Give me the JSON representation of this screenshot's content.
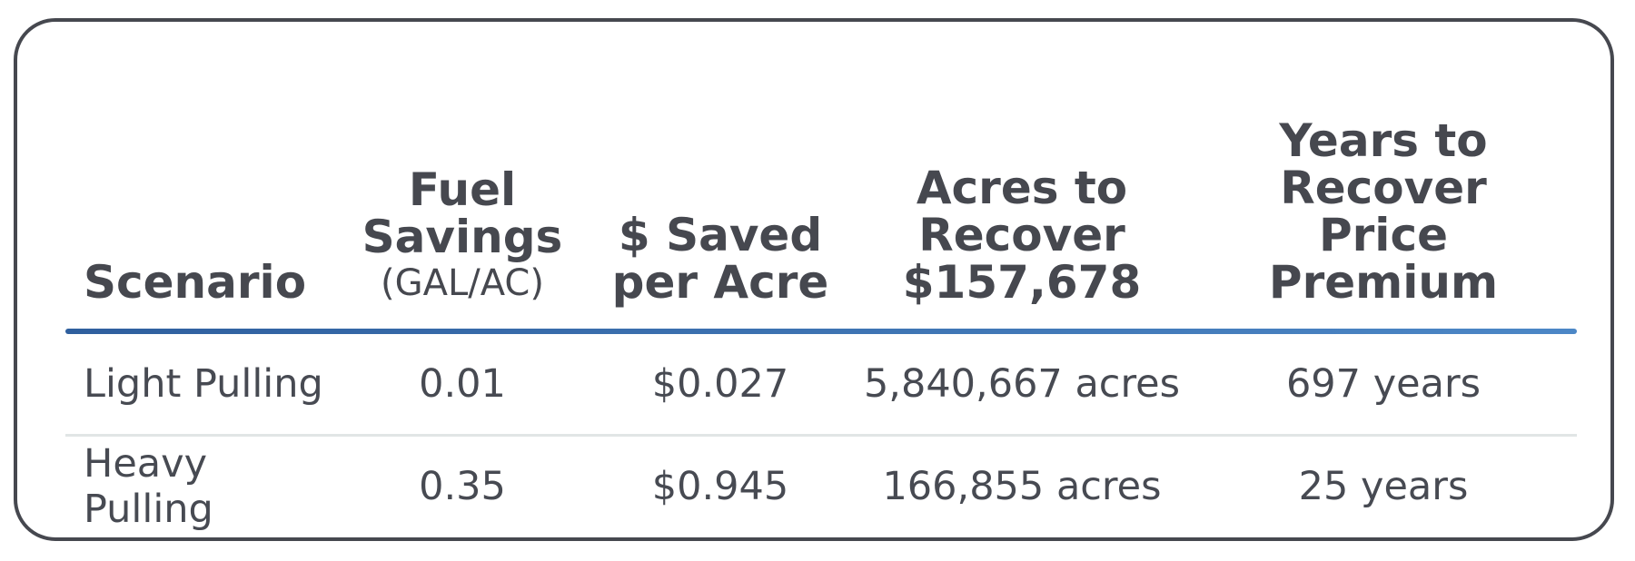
{
  "table": {
    "headers": [
      {
        "main": "Scenario",
        "sub": ""
      },
      {
        "main": "Fuel Savings",
        "sub": "(GAL/AC)"
      },
      {
        "main": "$ Saved per Acre",
        "sub": ""
      },
      {
        "main": "Acres to Recover $157,678",
        "sub": ""
      },
      {
        "main": "Years to Recover Price Premium",
        "sub": ""
      }
    ],
    "rows": [
      [
        "Light Pulling",
        "0.01",
        "$0.027",
        "5,840,667 acres",
        "697 years"
      ],
      [
        "Heavy Pulling",
        "0.35",
        "$0.945",
        "166,855 acres",
        "25 years"
      ]
    ]
  },
  "colors": {
    "text": "#474a52",
    "border": "#46484f",
    "accent_rule_start": "#2f5f9e",
    "accent_rule_end": "#4c87c6",
    "row_divider": "#e1e5e5"
  }
}
